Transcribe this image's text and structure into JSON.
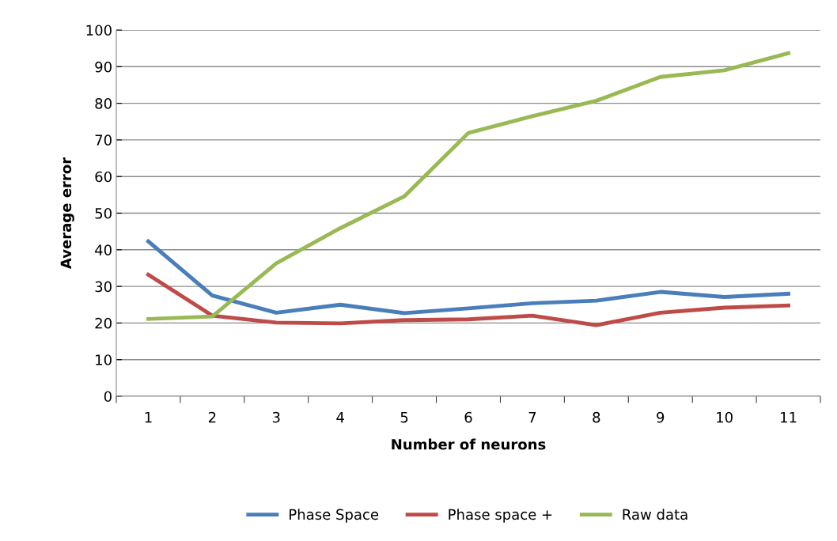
{
  "chart_data": {
    "type": "line",
    "xlabel": "Number of neurons",
    "ylabel": "Average error",
    "categories": [
      "1",
      "2",
      "3",
      "4",
      "5",
      "6",
      "7",
      "8",
      "9",
      "10",
      "11"
    ],
    "series": [
      {
        "name": "Phase Space",
        "color": "#4a7ebb",
        "values": [
          42.3,
          27.5,
          22.8,
          25,
          22.7,
          24,
          25.4,
          26.1,
          28.5,
          27.1,
          28
        ]
      },
      {
        "name": "Phase space +",
        "color": "#be4b48",
        "values": [
          33.2,
          22,
          20.1,
          19.9,
          20.8,
          21,
          22,
          19.4,
          22.8,
          24.2,
          24.8
        ]
      },
      {
        "name": "Raw data",
        "color": "#98b954",
        "values": [
          21.1,
          21.8,
          36.3,
          45.9,
          54.6,
          71.9,
          76.5,
          80.7,
          87.2,
          89,
          93.7
        ]
      }
    ],
    "ylim": [
      0,
      100
    ],
    "yticks": [
      0,
      10,
      20,
      30,
      40,
      50,
      60,
      70,
      80,
      90,
      100
    ],
    "grid": "y",
    "legend": "bottom",
    "marker": "none",
    "line_style": "solid"
  }
}
